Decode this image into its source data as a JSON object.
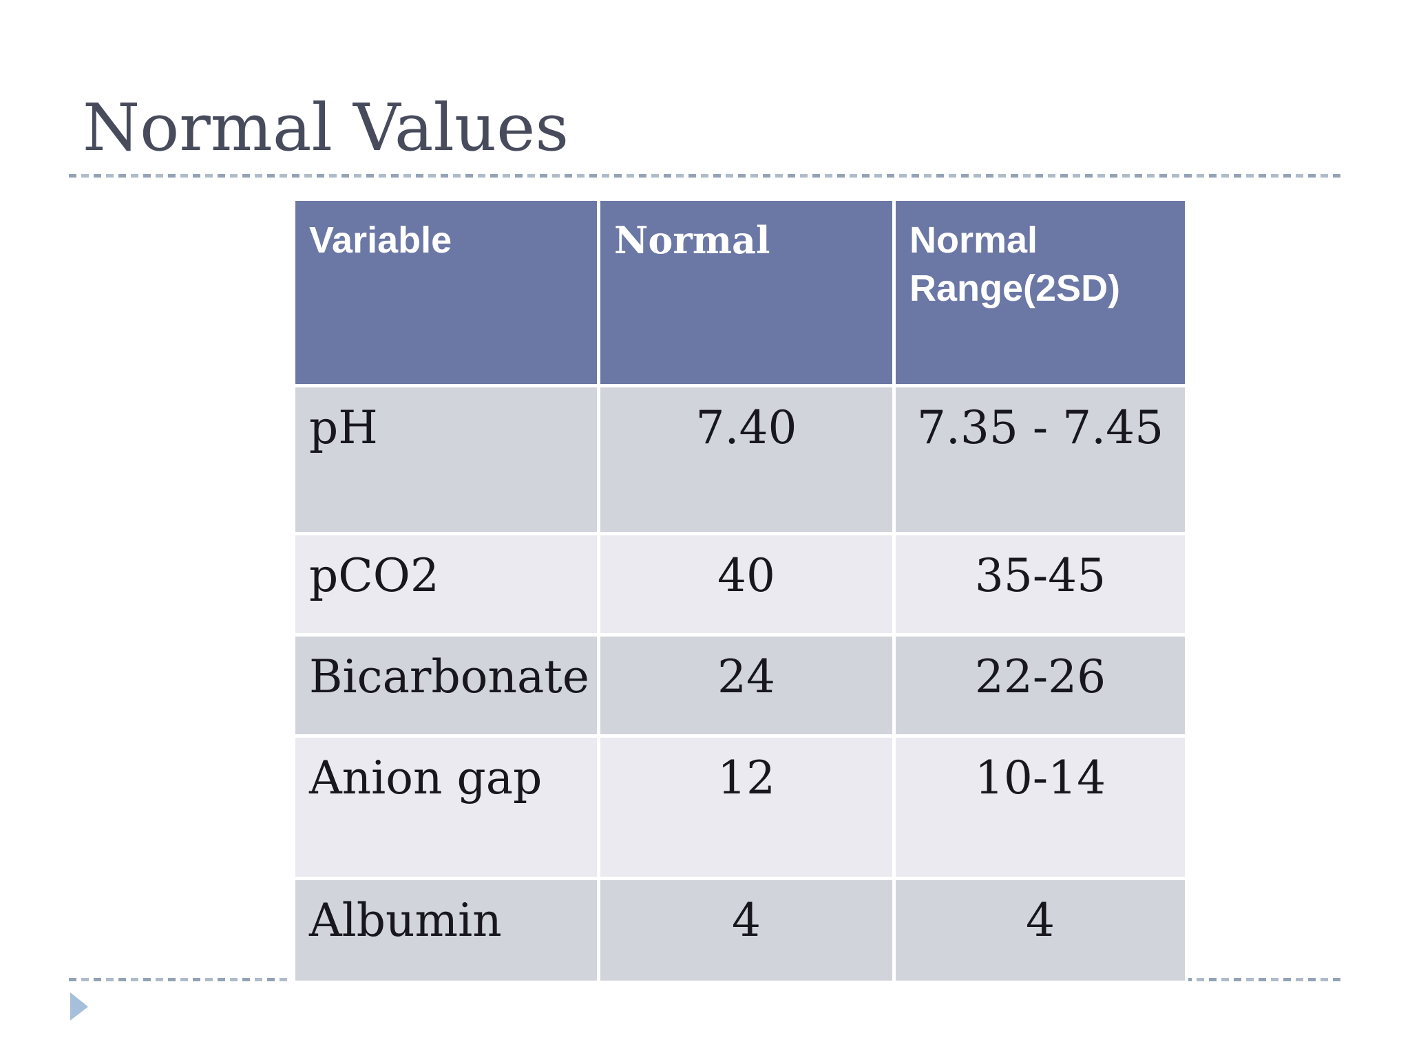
{
  "slide": {
    "title": "Normal Values",
    "colors": {
      "header_bg": "#6B77A4",
      "row_dark": "#D2D4DB",
      "row_light": "#EAEAF0",
      "title_text": "#474B5C",
      "body_text": "#17171D",
      "header_text": "#FFFFFF",
      "divider_a": "#93A2B5",
      "divider_b": "#AEBBCA",
      "arrow": "#A6BFDA"
    }
  },
  "table": {
    "headers": [
      "Variable",
      "Normal",
      "Normal Range(2SD)"
    ],
    "rows": [
      {
        "variable": "pH",
        "normal": "7.40",
        "range": "7.35 - 7.45"
      },
      {
        "variable": "pCO2",
        "normal": "40",
        "range": "35-45"
      },
      {
        "variable": "Bicarbonate",
        "normal": "24",
        "range": "22-26"
      },
      {
        "variable": "Anion gap",
        "normal": "12",
        "range": "10-14"
      },
      {
        "variable": "Albumin",
        "normal": "4",
        "range": "4"
      }
    ]
  }
}
